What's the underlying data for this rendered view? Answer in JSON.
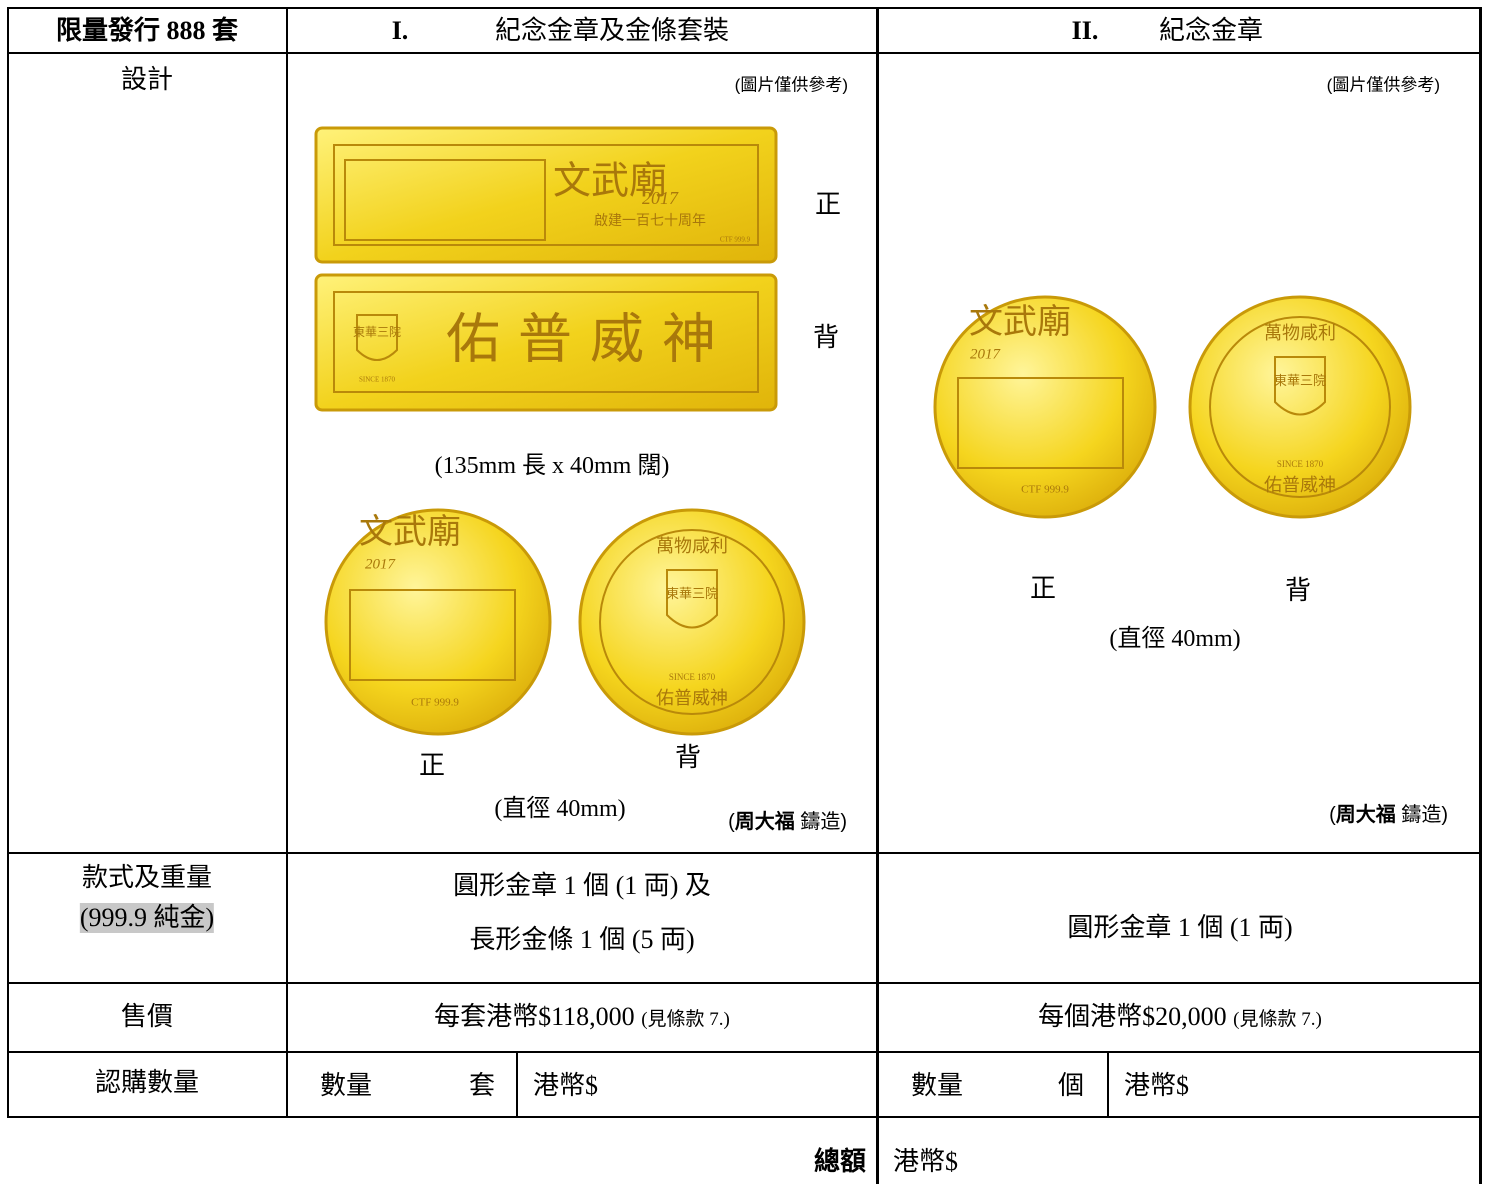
{
  "header": {
    "edition": "限量發行 888 套",
    "col1_num": "I.",
    "col1_title": "紀念金章及金條套裝",
    "col2_num": "II.",
    "col2_title": "紀念金章"
  },
  "design": {
    "label": "設計",
    "set": {
      "note": "(圖片僅供參考)",
      "bar_front": "正",
      "bar_back": "背",
      "bar_size": "(135mm 長 x 40mm 闊)",
      "coin_front": "正",
      "coin_back": "背",
      "coin_size": "(直徑  40mm)",
      "maker": [
        "(",
        "周大福",
        " 鑄造)"
      ]
    },
    "medal": {
      "note": "(圖片僅供參考)",
      "coin_front": "正",
      "coin_back": "背",
      "coin_size": "(直徑  40mm)",
      "maker": [
        "(",
        "周大福",
        " 鑄造)"
      ]
    },
    "engraving": {
      "temple": "文武廟",
      "year": "2017",
      "anniversary": "啟建一百七十周年",
      "purity": "CTF 999.9",
      "motto": "佑普威神",
      "org": "東華三院",
      "since": "SINCE 1870",
      "blessing": "萬物咸利"
    }
  },
  "weight": {
    "label": "款式及重量",
    "purity": "(999.9 純金)",
    "set": [
      "圓形金章 1 個 (1 両) 及",
      "長形金條 1 個 (5 両)"
    ],
    "medal": "圓形金章 1 個 (1 両)"
  },
  "price": {
    "label": "售價",
    "set": "每套港幣$118,000",
    "set_note": "(見條款 7.)",
    "medal": "每個港幣$20,000",
    "medal_note": "(見條款 7.)"
  },
  "quantity": {
    "label": "認購數量",
    "set": {
      "qty": "數量",
      "unit": "套",
      "amount": "港幣$"
    },
    "medal": {
      "qty": "數量",
      "unit": "個",
      "amount": "港幣$"
    }
  },
  "total": {
    "label": "總額",
    "amount": "港幣$"
  }
}
